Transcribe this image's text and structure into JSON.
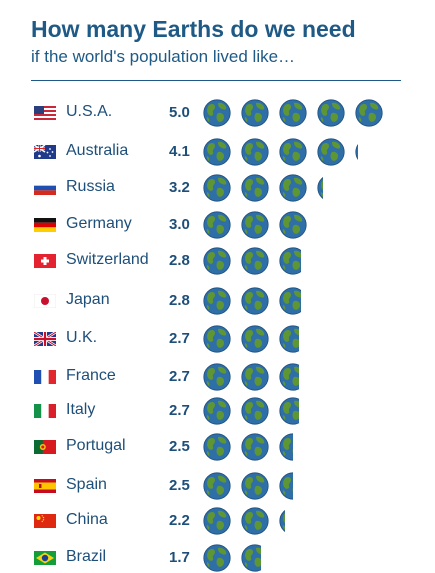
{
  "header": {
    "title": "How many Earths do we need",
    "subtitle": "if the world's population lived like…"
  },
  "colors": {
    "title": "#1e5a85",
    "text": "#1e4f7a",
    "ocean": "#2f6fa8",
    "land": "#5f9634"
  },
  "icon": "earth-globe-icon",
  "chart_data": {
    "type": "bar",
    "title": "How many Earths do we need",
    "subtitle": "if the world's population lived like…",
    "categories": [
      "U.S.A.",
      "Australia",
      "Russia",
      "Germany",
      "Switzerland",
      "Japan",
      "U.K.",
      "France",
      "Italy",
      "Portugal",
      "Spain",
      "China",
      "Brazil"
    ],
    "values": [
      5.0,
      4.1,
      3.2,
      3.0,
      2.8,
      2.8,
      2.7,
      2.7,
      2.7,
      2.5,
      2.5,
      2.2,
      1.7
    ],
    "value_labels": [
      "5.0",
      "4.1",
      "3.2",
      "3.0",
      "2.8",
      "2.8",
      "2.7",
      "2.7",
      "2.7",
      "2.5",
      "2.5",
      "2.2",
      "1.7"
    ],
    "flags": [
      "usa",
      "australia",
      "russia",
      "germany",
      "switzerland",
      "japan",
      "uk",
      "france",
      "italy",
      "portugal",
      "spain",
      "china",
      "brazil"
    ],
    "unit_icon": "earth-globe-icon"
  }
}
